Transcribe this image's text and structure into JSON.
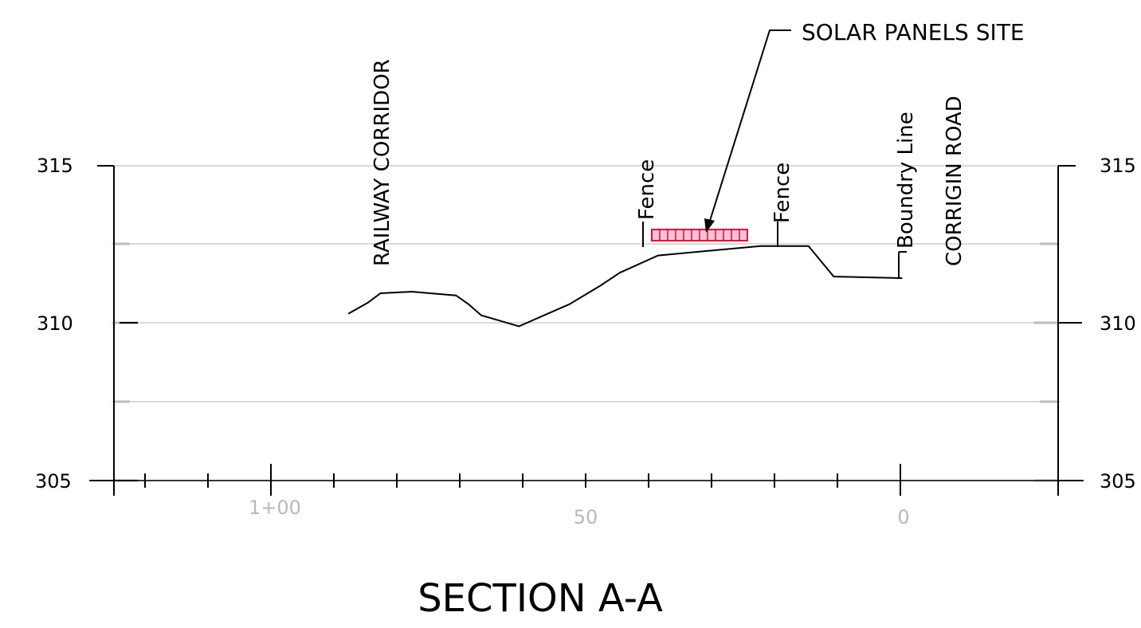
{
  "title": "SECTION A-A",
  "labels": {
    "railway": "RAILWAY CORRIDOR",
    "fence_left": "Fence",
    "fence_right": "Fence",
    "boundary": "Boundry Line",
    "road": "CORRIGIN ROAD",
    "solar": "SOLAR PANELS SITE"
  },
  "elevation_ticks": [
    "315",
    "310",
    "305"
  ],
  "chainage_labels": [
    "1+00",
    "50",
    "0"
  ],
  "colors": {
    "line": "#000000",
    "grid": "#d9d9d9",
    "chainage_text": "#b9b9b9",
    "solar_stroke": "#e8003c",
    "solar_fill": "#f7c6d4"
  },
  "chart_data": {
    "type": "line",
    "xlabel": "",
    "ylabel": "",
    "ylim": [
      305,
      315
    ],
    "x_ticks": [
      "1+00",
      "50",
      "0"
    ],
    "y_ticks": [
      "315",
      "310",
      "305"
    ],
    "grid": true,
    "series": [
      {
        "x": [
          87.7,
          84.6,
          82.6,
          77.6,
          70.6,
          68.6,
          66.6,
          60.6,
          56.6,
          52.6,
          47.6,
          44.6,
          38.5,
          22.2,
          21.2,
          17.7,
          14.6,
          10.6,
          -0.3
        ],
        "y": [
          310.3,
          310.65,
          310.95,
          311.0,
          310.88,
          310.6,
          310.25,
          309.9,
          310.25,
          310.6,
          311.2,
          311.6,
          312.15,
          312.45,
          312.45,
          312.45,
          312.45,
          311.48,
          311.43
        ]
      }
    ],
    "annotations": [
      {
        "text": "Fence",
        "x": 41.6
      },
      {
        "text": "Fence",
        "x": 20.2
      },
      {
        "text": "Boundry Line",
        "x": -0.3
      },
      {
        "text": "SOLAR PANELS SITE",
        "x": 31.0
      }
    ]
  }
}
